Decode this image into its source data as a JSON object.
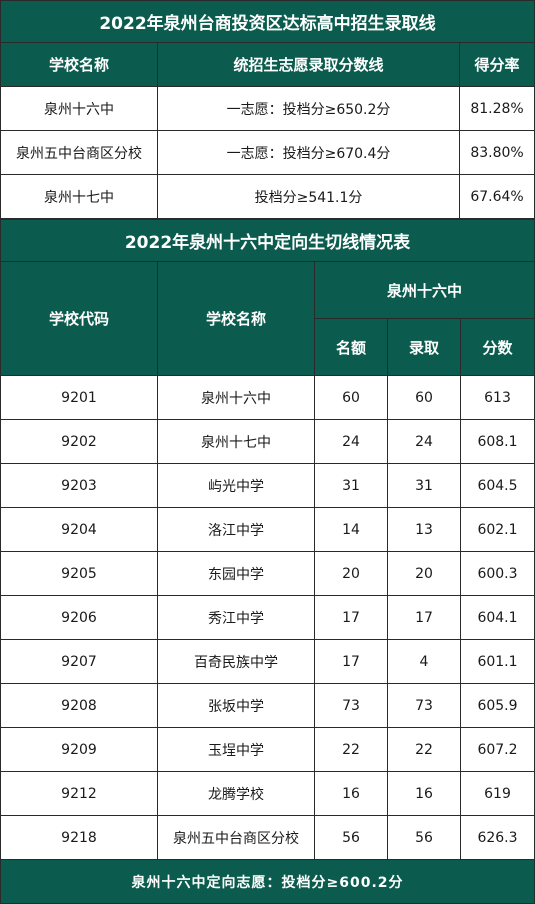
{
  "table1": {
    "title": "2022年泉州台商投资区达标高中招生录取线",
    "headers": [
      "学校名称",
      "统招生志愿录取分数线",
      "得分率"
    ],
    "rows": [
      [
        "泉州十六中",
        "一志愿：投档分≥650.2分",
        "81.28%"
      ],
      [
        "泉州五中台商区分校",
        "一志愿：投档分≥670.4分",
        "83.80%"
      ],
      [
        "泉州十七中",
        "投档分≥541.1分",
        "67.64%"
      ]
    ]
  },
  "table2": {
    "title": "2022年泉州十六中定向生切线情况表",
    "headers": {
      "code": "学校代码",
      "name": "学校名称",
      "group": "泉州十六中",
      "quota": "名额",
      "admit": "录取",
      "score": "分数"
    },
    "rows": [
      [
        "9201",
        "泉州十六中",
        "60",
        "60",
        "613"
      ],
      [
        "9202",
        "泉州十七中",
        "24",
        "24",
        "608.1"
      ],
      [
        "9203",
        "屿光中学",
        "31",
        "31",
        "604.5"
      ],
      [
        "9204",
        "洛江中学",
        "14",
        "13",
        "602.1"
      ],
      [
        "9205",
        "东园中学",
        "20",
        "20",
        "600.3"
      ],
      [
        "9206",
        "秀江中学",
        "17",
        "17",
        "604.1"
      ],
      [
        "9207",
        "百奇民族中学",
        "17",
        "4",
        "601.1"
      ],
      [
        "9208",
        "张坂中学",
        "73",
        "73",
        "605.9"
      ],
      [
        "9209",
        "玉埕中学",
        "22",
        "22",
        "607.2"
      ],
      [
        "9212",
        "龙腾学校",
        "16",
        "16",
        "619"
      ],
      [
        "9218",
        "泉州五中台商区分校",
        "56",
        "56",
        "626.3"
      ]
    ],
    "footer": "泉州十六中定向志愿：投档分≥600.2分"
  }
}
